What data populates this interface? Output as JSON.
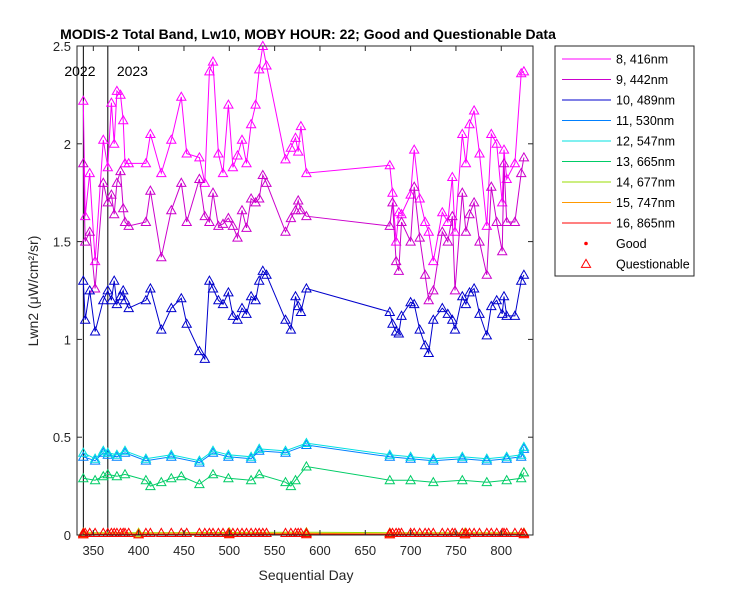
{
  "chart_data": {
    "type": "line",
    "title": "MODIS-2 Total Band, Lw10, MOBY HOUR: 22;  Good and Questionable Data",
    "xlabel": "Sequential Day",
    "ylabel": "Lwn2 (μW/cm²/sr)",
    "xlim": [
      332,
      835
    ],
    "ylim": [
      0,
      2.5
    ],
    "xticks": [
      350,
      400,
      450,
      500,
      550,
      600,
      650,
      700,
      750,
      800
    ],
    "yticks": [
      0,
      0.5,
      1,
      1.5,
      2,
      2.5
    ],
    "ytick_labels": [
      "0",
      "0.5",
      "1",
      "1.5",
      "2",
      "2.5"
    ],
    "year_markers": [
      {
        "label": "2022",
        "x": 339
      },
      {
        "label": "2023",
        "x": 366
      }
    ],
    "legend": {
      "position": "outside-top-right",
      "good_label": "Good",
      "questionable_label": "Questionable"
    },
    "series": [
      {
        "name": "8, 416nm",
        "color": "#ff00ff",
        "x": [
          339,
          341,
          346,
          352,
          361,
          366,
          370,
          373,
          376,
          380,
          383,
          385,
          389,
          408,
          413,
          425,
          436,
          447,
          453,
          467,
          473,
          478,
          482,
          488,
          493,
          499,
          504,
          509,
          514,
          519,
          524,
          529,
          533,
          537,
          541,
          562,
          568,
          573,
          576,
          579,
          585,
          677,
          680,
          684,
          687,
          690,
          700,
          704,
          710,
          716,
          720,
          725,
          735,
          741,
          746,
          749,
          757,
          761,
          765,
          770,
          776,
          784,
          789,
          795,
          801,
          803,
          806,
          815,
          822,
          825
        ],
        "y": [
          2.22,
          1.63,
          1.85,
          1.4,
          2.02,
          1.88,
          2.21,
          2.0,
          2.27,
          2.25,
          2.12,
          1.9,
          1.9,
          1.9,
          2.05,
          1.85,
          2.02,
          2.24,
          1.95,
          1.93,
          1.8,
          2.37,
          2.42,
          1.95,
          1.85,
          2.2,
          1.88,
          1.94,
          2.02,
          1.9,
          2.1,
          2.2,
          2.38,
          2.5,
          2.4,
          1.92,
          1.98,
          2.03,
          1.96,
          2.09,
          1.85,
          1.89,
          1.75,
          1.5,
          1.65,
          1.64,
          1.74,
          1.97,
          1.72,
          1.6,
          1.55,
          1.4,
          1.65,
          1.6,
          1.83,
          1.55,
          2.05,
          1.9,
          2.1,
          2.17,
          1.95,
          1.58,
          2.05,
          2.0,
          1.7,
          1.97,
          1.82,
          1.9,
          2.36,
          2.37
        ]
      },
      {
        "name": "9, 442nm",
        "color": "#cc00cc",
        "x": [
          339,
          341,
          346,
          352,
          361,
          366,
          370,
          373,
          376,
          380,
          383,
          385,
          389,
          408,
          413,
          425,
          436,
          447,
          453,
          467,
          473,
          478,
          482,
          488,
          493,
          499,
          504,
          509,
          514,
          519,
          524,
          529,
          533,
          537,
          541,
          562,
          568,
          573,
          576,
          579,
          585,
          677,
          680,
          684,
          687,
          690,
          700,
          704,
          710,
          716,
          720,
          725,
          735,
          741,
          746,
          749,
          757,
          761,
          765,
          770,
          776,
          784,
          789,
          795,
          801,
          803,
          806,
          815,
          822,
          825
        ],
        "y": [
          1.9,
          1.5,
          1.55,
          1.26,
          1.8,
          1.7,
          1.74,
          1.64,
          1.8,
          1.86,
          1.67,
          1.6,
          1.58,
          1.6,
          1.76,
          1.42,
          1.66,
          1.8,
          1.6,
          1.82,
          1.63,
          1.6,
          1.75,
          1.58,
          1.59,
          1.62,
          1.58,
          1.52,
          1.66,
          1.57,
          1.72,
          1.7,
          1.72,
          1.84,
          1.8,
          1.55,
          1.62,
          1.66,
          1.71,
          1.66,
          1.63,
          1.58,
          1.7,
          1.4,
          1.35,
          1.6,
          1.5,
          1.78,
          1.52,
          1.33,
          1.2,
          1.25,
          1.55,
          1.5,
          1.63,
          1.25,
          1.75,
          1.55,
          1.64,
          1.7,
          1.5,
          1.33,
          1.78,
          1.6,
          1.45,
          1.9,
          1.6,
          1.6,
          1.85,
          1.93
        ]
      },
      {
        "name": "10, 489nm",
        "color": "#0000cc",
        "x": [
          339,
          341,
          346,
          352,
          361,
          366,
          370,
          373,
          376,
          380,
          383,
          385,
          389,
          408,
          413,
          425,
          436,
          447,
          453,
          467,
          473,
          478,
          482,
          488,
          493,
          499,
          504,
          509,
          514,
          519,
          524,
          529,
          533,
          537,
          541,
          562,
          568,
          573,
          576,
          579,
          585,
          677,
          680,
          684,
          687,
          690,
          700,
          704,
          710,
          716,
          720,
          725,
          735,
          741,
          746,
          749,
          757,
          761,
          765,
          770,
          776,
          784,
          789,
          795,
          801,
          803,
          806,
          815,
          822,
          825
        ],
        "y": [
          1.3,
          1.1,
          1.25,
          1.04,
          1.2,
          1.25,
          1.2,
          1.3,
          1.18,
          1.22,
          1.25,
          1.2,
          1.16,
          1.2,
          1.26,
          1.05,
          1.16,
          1.21,
          1.08,
          0.94,
          0.9,
          1.3,
          1.26,
          1.2,
          1.18,
          1.24,
          1.12,
          1.1,
          1.16,
          1.13,
          1.22,
          1.2,
          1.3,
          1.35,
          1.33,
          1.1,
          1.05,
          1.22,
          1.17,
          1.14,
          1.26,
          1.14,
          1.08,
          1.04,
          1.03,
          1.12,
          1.19,
          1.18,
          1.05,
          0.97,
          0.93,
          1.1,
          1.16,
          1.13,
          1.1,
          1.05,
          1.22,
          1.18,
          1.24,
          1.26,
          1.13,
          1.02,
          1.17,
          1.2,
          1.13,
          1.22,
          1.12,
          1.12,
          1.3,
          1.33
        ]
      },
      {
        "name": "11, 530nm",
        "color": "#0080ff",
        "x": [
          339,
          352,
          361,
          366,
          376,
          385,
          408,
          436,
          467,
          482,
          499,
          524,
          533,
          562,
          585,
          677,
          700,
          725,
          757,
          784,
          806,
          822,
          825
        ],
        "y": [
          0.4,
          0.38,
          0.42,
          0.41,
          0.4,
          0.42,
          0.38,
          0.4,
          0.37,
          0.42,
          0.4,
          0.39,
          0.43,
          0.42,
          0.46,
          0.4,
          0.39,
          0.38,
          0.39,
          0.38,
          0.39,
          0.4,
          0.44
        ]
      },
      {
        "name": "12, 547nm",
        "color": "#00e0e0",
        "x": [
          339,
          352,
          361,
          366,
          376,
          385,
          408,
          436,
          467,
          482,
          499,
          524,
          533,
          562,
          585,
          677,
          700,
          725,
          757,
          784,
          806,
          822,
          825
        ],
        "y": [
          0.42,
          0.39,
          0.43,
          0.42,
          0.41,
          0.43,
          0.39,
          0.41,
          0.38,
          0.43,
          0.41,
          0.4,
          0.44,
          0.43,
          0.47,
          0.41,
          0.4,
          0.39,
          0.4,
          0.39,
          0.4,
          0.41,
          0.45
        ]
      },
      {
        "name": "13, 665nm",
        "color": "#00cc66",
        "x": [
          339,
          352,
          361,
          366,
          376,
          385,
          408,
          413,
          425,
          436,
          447,
          467,
          482,
          499,
          524,
          533,
          562,
          568,
          573,
          585,
          677,
          700,
          725,
          757,
          784,
          806,
          822,
          825
        ],
        "y": [
          0.29,
          0.28,
          0.3,
          0.31,
          0.3,
          0.31,
          0.28,
          0.25,
          0.27,
          0.29,
          0.3,
          0.26,
          0.31,
          0.29,
          0.28,
          0.31,
          0.27,
          0.25,
          0.28,
          0.35,
          0.28,
          0.28,
          0.27,
          0.28,
          0.27,
          0.28,
          0.29,
          0.32
        ]
      },
      {
        "name": "14, 677nm",
        "color": "#99dd00",
        "x": [
          339,
          400,
          500,
          585,
          677,
          760,
          825
        ],
        "y": [
          0.012,
          0.011,
          0.013,
          0.014,
          0.012,
          0.011,
          0.012
        ]
      },
      {
        "name": "15, 747nm",
        "color": "#ff9900",
        "x": [
          339,
          400,
          500,
          585,
          677,
          760,
          825
        ],
        "y": [
          0.006,
          0.006,
          0.007,
          0.008,
          0.006,
          0.006,
          0.007
        ]
      },
      {
        "name": "16, 865nm",
        "color": "#ff0000",
        "x": [
          339,
          400,
          500,
          585,
          677,
          760,
          825
        ],
        "y": [
          0.003,
          0.003,
          0.004,
          0.004,
          0.003,
          0.003,
          0.004
        ]
      }
    ]
  }
}
